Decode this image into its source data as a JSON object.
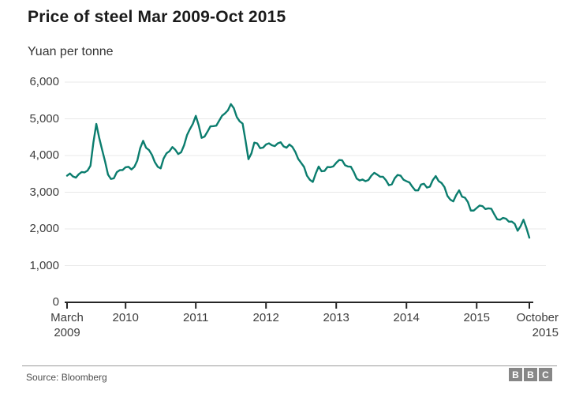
{
  "header": {
    "title": "Price of steel Mar 2009-Oct 2015",
    "subtitle": "Yuan per tonne"
  },
  "footer": {
    "source": "Source: Bloomberg",
    "logo_letters": [
      "B",
      "B",
      "C"
    ]
  },
  "colors": {
    "line": "#0b7d6e",
    "grid": "#e8e8e8",
    "axis": "#262626",
    "text": "#3d3d3d",
    "logo_gray": "#878787"
  },
  "chart_data": {
    "type": "line",
    "title": "Price of steel Mar 2009-Oct 2015",
    "ylabel": "Yuan per tonne",
    "unit": "yuan per tonne",
    "frequency": "monthly",
    "start_month": "2009-03",
    "end_month": "2015-10",
    "ylim": [
      0,
      6000
    ],
    "grid": true,
    "legend": "none",
    "y_ticks": [
      {
        "value": 0,
        "label": "0"
      },
      {
        "value": 1000,
        "label": "1,000"
      },
      {
        "value": 2000,
        "label": "2,000"
      },
      {
        "value": 3000,
        "label": "3,000"
      },
      {
        "value": 4000,
        "label": "4,000"
      },
      {
        "value": 5000,
        "label": "5,000"
      },
      {
        "value": 6000,
        "label": "6,000"
      }
    ],
    "x_ticks": [
      {
        "line1": "March",
        "line2": "2009",
        "month": 0
      },
      {
        "line1": "2010",
        "line2": "",
        "month": 10
      },
      {
        "line1": "2011",
        "line2": "",
        "month": 22
      },
      {
        "line1": "2012",
        "line2": "",
        "month": 34
      },
      {
        "line1": "2013",
        "line2": "",
        "month": 46
      },
      {
        "line1": "2014",
        "line2": "",
        "month": 58
      },
      {
        "line1": "2015",
        "line2": "",
        "month": 70
      },
      {
        "line1": "October",
        "line2": "2015",
        "month": 79
      }
    ],
    "series": [
      {
        "name": "Price of steel (yuan per tonne)",
        "values": [
          3450,
          3430,
          3490,
          3540,
          3720,
          4860,
          4150,
          3480,
          3380,
          3600,
          3680,
          3620,
          3860,
          4400,
          4150,
          3820,
          3650,
          4060,
          4230,
          4040,
          4280,
          4720,
          5080,
          4480,
          4650,
          4800,
          4950,
          5150,
          5400,
          5050,
          4870,
          3900,
          4350,
          4200,
          4300,
          4280,
          4330,
          4250,
          4300,
          4100,
          3800,
          3450,
          3280,
          3700,
          3580,
          3680,
          3800,
          3870,
          3700,
          3550,
          3320,
          3300,
          3450,
          3480,
          3420,
          3190,
          3380,
          3450,
          3300,
          3150,
          3050,
          3230,
          3150,
          3440,
          3250,
          2900,
          2750,
          3050,
          2850,
          2500,
          2570,
          2620,
          2560,
          2400,
          2250,
          2280,
          2200,
          1950,
          2250,
          1760
        ]
      }
    ]
  }
}
